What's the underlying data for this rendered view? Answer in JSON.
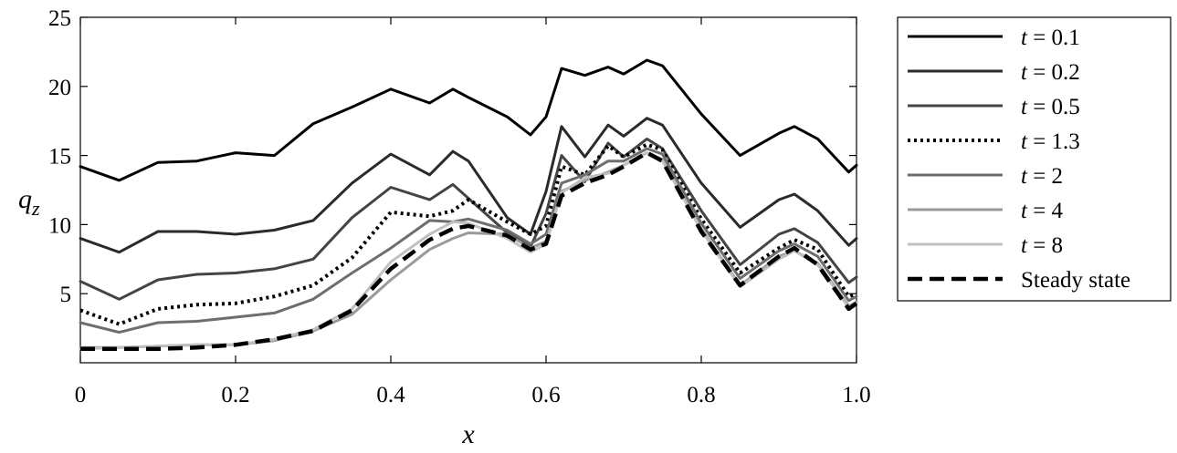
{
  "chart_data": {
    "type": "line",
    "xlabel": "x",
    "ylabel_main": "q",
    "ylabel_sub": "z",
    "xlim": [
      0,
      1
    ],
    "ylim": [
      0,
      25
    ],
    "xticks": [
      0,
      0.2,
      0.4,
      0.6,
      0.8,
      1.0
    ],
    "xtick_labels": [
      "0",
      "0.2",
      "0.4",
      "0.6",
      "0.8",
      "1.0"
    ],
    "yticks": [
      5,
      10,
      15,
      20,
      25
    ],
    "ytick_labels": [
      "5",
      "10",
      "15",
      "20",
      "25"
    ],
    "grid": false,
    "legend_position": "outside-right",
    "x": [
      0,
      0.05,
      0.1,
      0.15,
      0.2,
      0.25,
      0.3,
      0.35,
      0.4,
      0.45,
      0.48,
      0.5,
      0.55,
      0.58,
      0.6,
      0.62,
      0.65,
      0.68,
      0.7,
      0.73,
      0.75,
      0.8,
      0.85,
      0.9,
      0.92,
      0.95,
      0.99,
      1.0
    ],
    "series": [
      {
        "name": "t = 0.1",
        "color": "#000000",
        "dash": "",
        "width": 3,
        "values": [
          14.2,
          13.2,
          14.5,
          14.6,
          15.2,
          15.0,
          17.3,
          18.5,
          19.8,
          18.8,
          19.8,
          19.2,
          17.8,
          16.5,
          17.8,
          21.3,
          20.8,
          21.4,
          20.9,
          21.9,
          21.5,
          18.0,
          15.0,
          16.6,
          17.1,
          16.2,
          13.8,
          14.3
        ]
      },
      {
        "name": "t = 0.2",
        "color": "#2a2a2a",
        "dash": "",
        "width": 3,
        "values": [
          9.0,
          8.0,
          9.5,
          9.5,
          9.3,
          9.6,
          10.3,
          13.0,
          15.1,
          13.6,
          15.3,
          14.6,
          10.5,
          9.3,
          12.4,
          17.1,
          14.9,
          17.2,
          16.4,
          17.7,
          17.2,
          13.0,
          9.8,
          11.8,
          12.2,
          11.0,
          8.5,
          9.0
        ]
      },
      {
        "name": "t = 0.5",
        "color": "#444444",
        "dash": "",
        "width": 3,
        "values": [
          5.9,
          4.6,
          6.0,
          6.4,
          6.5,
          6.8,
          7.5,
          10.5,
          12.7,
          11.8,
          12.9,
          11.9,
          9.4,
          8.4,
          10.8,
          15.0,
          13.1,
          15.9,
          14.9,
          16.2,
          15.5,
          11.0,
          7.1,
          9.3,
          9.7,
          8.7,
          5.8,
          6.2
        ]
      },
      {
        "name": "t = 1.3",
        "color": "#000000",
        "dash": "3 4",
        "width": 4,
        "values": [
          3.8,
          2.8,
          3.9,
          4.2,
          4.3,
          4.8,
          5.6,
          7.6,
          10.9,
          10.6,
          11.0,
          11.8,
          10.2,
          9.3,
          9.9,
          14.2,
          13.6,
          15.7,
          14.9,
          15.8,
          15.4,
          10.4,
          6.5,
          8.3,
          8.9,
          8.2,
          4.8,
          5.0
        ]
      },
      {
        "name": "t = 2",
        "color": "#6e6e6e",
        "dash": "",
        "width": 3,
        "values": [
          2.9,
          2.2,
          2.9,
          3.0,
          3.3,
          3.6,
          4.6,
          6.5,
          8.3,
          10.3,
          10.2,
          10.4,
          9.6,
          8.6,
          9.3,
          13.0,
          13.6,
          14.6,
          14.6,
          15.5,
          15.1,
          10.1,
          6.1,
          8.1,
          8.6,
          7.7,
          4.5,
          4.8
        ]
      },
      {
        "name": "t = 4",
        "color": "#9a9a9a",
        "dash": "",
        "width": 3,
        "values": [
          1.1,
          1.1,
          1.2,
          1.3,
          1.3,
          1.6,
          2.3,
          3.5,
          6.0,
          8.2,
          9.0,
          9.4,
          9.3,
          8.3,
          8.8,
          12.4,
          13.2,
          13.8,
          14.3,
          15.2,
          14.7,
          9.7,
          5.6,
          7.7,
          8.1,
          7.2,
          4.1,
          4.4
        ]
      },
      {
        "name": "t = 8",
        "color": "#c0c0c0",
        "dash": "",
        "width": 3,
        "values": [
          1.0,
          1.1,
          1.2,
          1.3,
          1.3,
          1.7,
          2.4,
          3.9,
          7.3,
          9.3,
          10.2,
          10.1,
          9.0,
          8.0,
          8.6,
          12.3,
          13.4,
          13.7,
          14.3,
          15.2,
          14.6,
          9.6,
          5.5,
          7.5,
          8.1,
          7.1,
          4.0,
          4.3
        ]
      },
      {
        "name": "Steady state",
        "color": "#000000",
        "dash": "16 8",
        "width": 4.5,
        "values": [
          1.0,
          1.0,
          1.0,
          1.1,
          1.3,
          1.7,
          2.3,
          3.8,
          6.8,
          8.9,
          9.7,
          9.9,
          9.2,
          8.2,
          8.6,
          12.1,
          13.0,
          13.6,
          14.2,
          15.2,
          14.6,
          9.5,
          5.6,
          7.7,
          8.3,
          7.1,
          3.9,
          4.3
        ]
      }
    ]
  }
}
